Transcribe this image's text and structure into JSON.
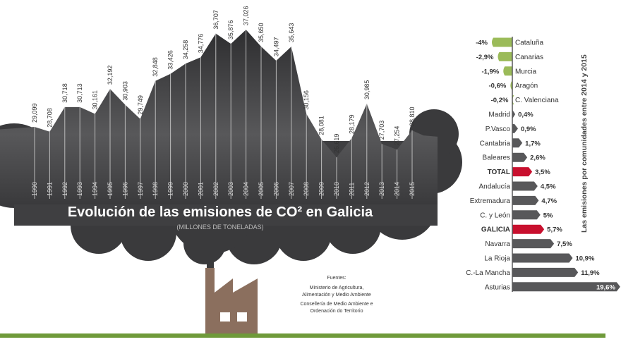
{
  "chart_data": [
    {
      "type": "area",
      "title": "Evolución de las emisiones de CO² en Galicia",
      "subtitle": "(MILLONES DE TONELADAS)",
      "categories": [
        "1990",
        "1991",
        "1992",
        "1993",
        "1994",
        "1995",
        "1996",
        "1997",
        "1998",
        "1999",
        "2000",
        "2001",
        "2002",
        "2003",
        "2004",
        "2005",
        "2006",
        "2007",
        "2008",
        "2009",
        "2010",
        "2011",
        "2012",
        "2013",
        "2014",
        "2015"
      ],
      "values": [
        29.099,
        28.708,
        30.718,
        30.713,
        30.161,
        32.192,
        30.903,
        29.749,
        32.848,
        33.426,
        34.258,
        34.776,
        36.707,
        35.876,
        37.026,
        35.65,
        34.497,
        35.643,
        30.156,
        28.081,
        26.619,
        28.179,
        30.985,
        27.703,
        27.254,
        28.81
      ],
      "labels": [
        "29,099",
        "28,708",
        "30,718",
        "30,713",
        "30,161",
        "32,192",
        "30,903",
        "29,749",
        "32,848",
        "33,426",
        "34,258",
        "34,776",
        "36,707",
        "35,876",
        "37,026",
        "35,650",
        "34,497",
        "35,643",
        "30,156",
        "28,081",
        "26,619",
        "28,179",
        "30,985",
        "27,703",
        "27,254",
        "28,810"
      ],
      "color": "#3a3a3c",
      "sources": {
        "heading": "Fuentes:",
        "lines": [
          "Ministerio de Agricultura,",
          "Alimentación y Medio Ambiente",
          "Consellería de Medio Ambiente e",
          "Ordenación do Territorio"
        ]
      }
    },
    {
      "type": "bar",
      "orientation": "horizontal",
      "title": "Las emisiones por comunidades entre 2014 y 2015",
      "categories": [
        "Cataluña",
        "Canarias",
        "Murcia",
        "Aragón",
        "C. Valenciana",
        "Madrid",
        "P.Vasco",
        "Cantabria",
        "Baleares",
        "TOTAL",
        "Andalucía",
        "Extremadura",
        "C. y León",
        "GALICIA",
        "Navarra",
        "La Rioja",
        "C.-La Mancha",
        "Asturias"
      ],
      "values": [
        -4,
        -2.9,
        -1.9,
        -0.6,
        -0.2,
        0.4,
        0.9,
        1.7,
        2.6,
        3.5,
        4.5,
        4.7,
        5,
        5.7,
        7.5,
        10.9,
        11.9,
        19.6
      ],
      "labels": [
        "-4%",
        "-2,9%",
        "-1,9%",
        "-0,6%",
        "-0,2%",
        "0,4%",
        "0,9%",
        "1,7%",
        "2,6%",
        "3,5%",
        "4,5%",
        "4,7%",
        "5%",
        "5,7%",
        "7,5%",
        "10,9%",
        "11,9%",
        "19,6%"
      ],
      "highlight": [
        "TOTAL",
        "GALICIA"
      ],
      "colors": {
        "negative": "#9bbb59",
        "positive": "#58585a",
        "highlight": "#c8102e"
      }
    }
  ]
}
